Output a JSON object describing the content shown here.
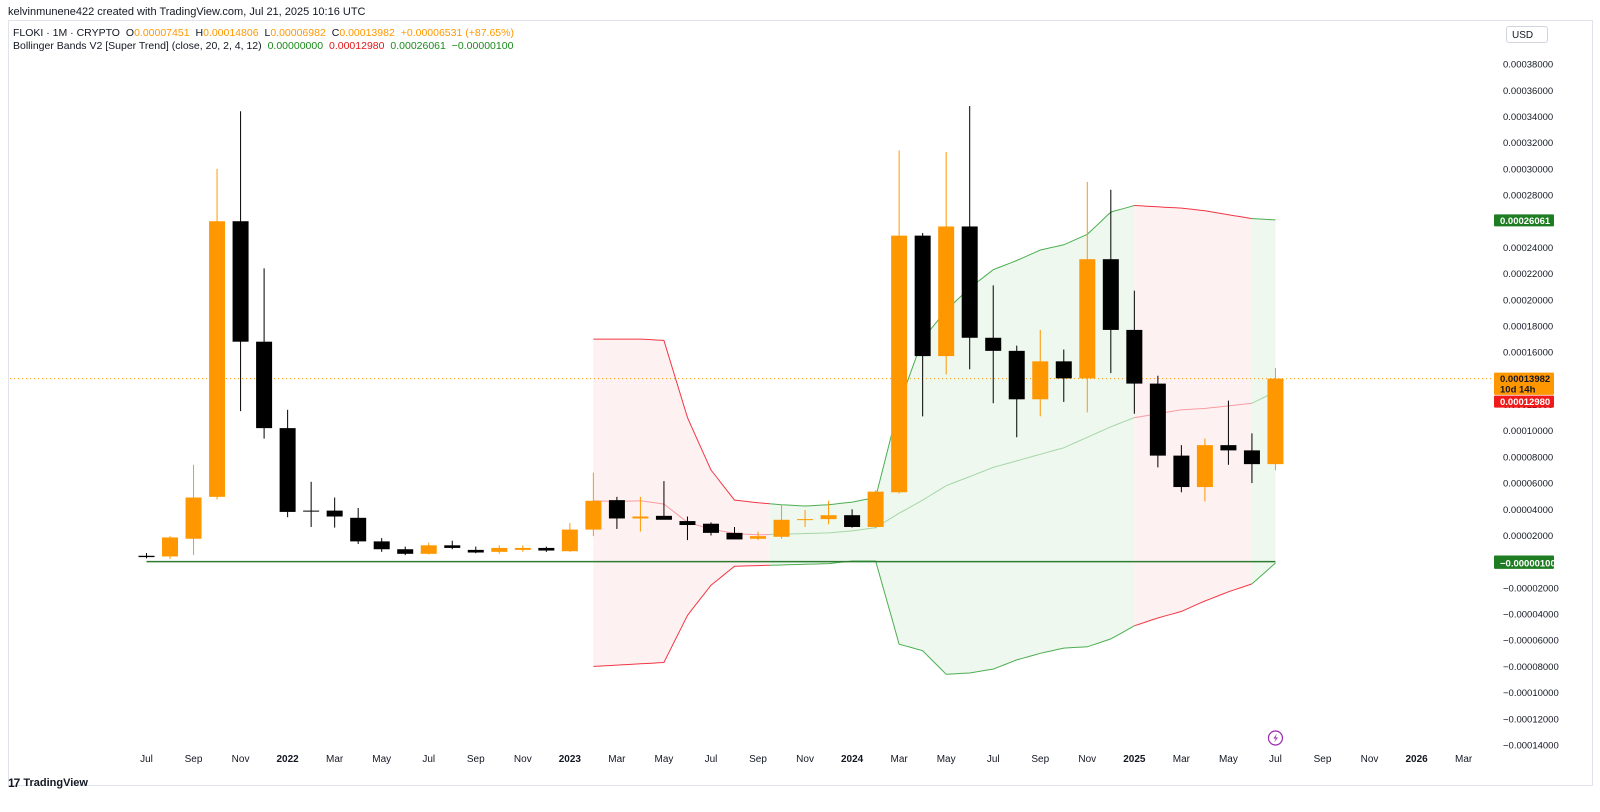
{
  "caption": "kelvinmunene422 created with TradingView.com, Jul 21, 2025 10:16 UTC",
  "currency_button": "USD",
  "brand": "TradingView",
  "brand_mark": "17",
  "legend": {
    "symbol": "FLOKI · 1M · CRYPTO",
    "o_label": "O",
    "o_value": "0.00007451",
    "h_label": "H",
    "h_value": "0.00014806",
    "l_label": "L",
    "l_value": "0.00006982",
    "c_label": "C",
    "c_value": "0.00013982",
    "change": "+0.00006531 (+87.65%)",
    "indicator": "Bollinger Bands V2 [Super Trend] (close, 20, 2, 4, 12)",
    "ind_v1": "0.00000000",
    "ind_v2": "0.00012980",
    "ind_v3": "0.00026061",
    "ind_v4": "−0.00000100"
  },
  "colors": {
    "up": "#ff9800",
    "down": "#000000",
    "green_line": "#4caf50",
    "red_line": "#f23645",
    "green_fill": "#e8f5e9",
    "red_fill": "#fdecec",
    "zero_line": "#2e7d32"
  },
  "price_tags": [
    {
      "label": "0.00026061",
      "value": 0.00026061,
      "bg": "#1e7d22",
      "color": "#ffffff"
    },
    {
      "label": "0.00013982",
      "value": 0.00013982,
      "bg": "#ff9800",
      "color": "#131722"
    },
    {
      "label": "10d 14h",
      "value": 0.000132,
      "bg": "#ff9800",
      "color": "#131722"
    },
    {
      "label": "0.00012980",
      "value": 0.0001222,
      "bg": "#f01a1a",
      "color": "#ffffff"
    },
    {
      "label": "0.00000000",
      "value": 1e-07,
      "bg": "#1e7d22",
      "color": "#ffffff"
    },
    {
      "label": "−0.00000100",
      "value": -9e-07,
      "bg": "#1e7d22",
      "color": "#ffffff"
    }
  ],
  "chart_data": {
    "type": "candlestick",
    "title": "",
    "y_range": [
      -0.00014,
      0.00039
    ],
    "y_ticks": [
      "0.00038000",
      "0.00036000",
      "0.00034000",
      "0.00032000",
      "0.00030000",
      "0.00028000",
      "0.00026000",
      "0.00024000",
      "0.00022000",
      "0.00020000",
      "0.00018000",
      "0.00016000",
      "0.00014000",
      "0.00012000",
      "0.00010000",
      "0.00008000",
      "0.00006000",
      "0.00004000",
      "0.00002000",
      "0.00000000",
      "−0.00002000",
      "−0.00004000",
      "−0.00006000",
      "−0.00008000",
      "−0.00010000",
      "−0.00012000",
      "−0.00014000"
    ],
    "y_tick_values": [
      0.00038,
      0.00036,
      0.00034,
      0.00032,
      0.0003,
      0.00028,
      0.00026,
      0.00024,
      0.00022,
      0.0002,
      0.00018,
      0.00016,
      0.00014,
      0.00012,
      0.0001,
      8e-05,
      6e-05,
      4e-05,
      2e-05,
      0,
      -2e-05,
      -4e-05,
      -6e-05,
      -8e-05,
      -0.0001,
      -0.00012,
      -0.00014
    ],
    "x_labels": [
      "Jul",
      "Sep",
      "Nov",
      "2022",
      "Mar",
      "May",
      "Jul",
      "Sep",
      "Nov",
      "2023",
      "Mar",
      "May",
      "Jul",
      "Sep",
      "Nov",
      "2024",
      "Mar",
      "May",
      "Jul",
      "Sep",
      "Nov",
      "2025",
      "Mar",
      "May",
      "Jul",
      "Sep",
      "Nov",
      "2026",
      "Mar"
    ],
    "x_label_months": [
      0,
      2,
      4,
      6,
      8,
      10,
      12,
      14,
      16,
      18,
      20,
      22,
      24,
      26,
      28,
      30,
      32,
      34,
      36,
      38,
      40,
      42,
      44,
      46,
      48,
      50,
      52,
      54,
      56
    ],
    "bold_labels": [
      "2022",
      "2023",
      "2024",
      "2025",
      "2026"
    ],
    "candles": [
      {
        "m": 0,
        "o": 4.5e-06,
        "h": 6.5e-06,
        "l": 2.5e-06,
        "c": 3.5e-06
      },
      {
        "m": 1,
        "o": 4e-06,
        "h": 1.95e-05,
        "l": 2e-06,
        "c": 1.85e-05
      },
      {
        "m": 2,
        "o": 1.75e-05,
        "h": 7.4e-05,
        "l": 5e-06,
        "c": 4.9e-05
      },
      {
        "m": 3,
        "o": 4.95e-05,
        "h": 0.0003,
        "l": 4.75e-05,
        "c": 0.00026
      },
      {
        "m": 4,
        "o": 0.00026,
        "h": 0.000344,
        "l": 0.000115,
        "c": 0.000168
      },
      {
        "m": 5,
        "o": 0.000168,
        "h": 0.000224,
        "l": 9.4e-05,
        "c": 0.000102
      },
      {
        "m": 6,
        "o": 0.000102,
        "h": 0.000116,
        "l": 3.4e-05,
        "c": 3.8e-05
      },
      {
        "m": 7,
        "o": 3.9e-05,
        "h": 6.1e-05,
        "l": 2.65e-05,
        "c": 3.85e-05
      },
      {
        "m": 8,
        "o": 3.9e-05,
        "h": 4.9e-05,
        "l": 2.6e-05,
        "c": 3.45e-05
      },
      {
        "m": 9,
        "o": 3.35e-05,
        "h": 4.1e-05,
        "l": 1.35e-05,
        "c": 1.55e-05
      },
      {
        "m": 10,
        "o": 1.55e-05,
        "h": 1.8e-05,
        "l": 7.5e-06,
        "c": 9.5e-06
      },
      {
        "m": 11,
        "o": 9.5e-06,
        "h": 1.15e-05,
        "l": 5e-06,
        "c": 6e-06
      },
      {
        "m": 12,
        "o": 6e-06,
        "h": 1.45e-05,
        "l": 5.5e-06,
        "c": 1.25e-05
      },
      {
        "m": 13,
        "o": 1.25e-05,
        "h": 1.6e-05,
        "l": 9.5e-06,
        "c": 1.05e-05
      },
      {
        "m": 14,
        "o": 9e-06,
        "h": 1.15e-05,
        "l": 6.5e-06,
        "c": 7e-06
      },
      {
        "m": 15,
        "o": 7.5e-06,
        "h": 1.25e-05,
        "l": 6e-06,
        "c": 1.05e-05
      },
      {
        "m": 16,
        "o": 9e-06,
        "h": 1.25e-05,
        "l": 7.5e-06,
        "c": 1.05e-05
      },
      {
        "m": 17,
        "o": 1.05e-05,
        "h": 1.15e-05,
        "l": 7.5e-06,
        "c": 8.5e-06
      },
      {
        "m": 18,
        "o": 8e-06,
        "h": 2.95e-05,
        "l": 7.5e-06,
        "c": 2.45e-05
      },
      {
        "m": 19,
        "o": 2.45e-05,
        "h": 6.8e-05,
        "l": 1.95e-05,
        "c": 4.65e-05
      },
      {
        "m": 20,
        "o": 4.7e-05,
        "h": 4.95e-05,
        "l": 2.5e-05,
        "c": 3.3e-05
      },
      {
        "m": 21,
        "o": 3.3e-05,
        "h": 4.95e-05,
        "l": 2.3e-05,
        "c": 3.45e-05
      },
      {
        "m": 22,
        "o": 3.5e-05,
        "h": 6.15e-05,
        "l": 3.25e-05,
        "c": 3.2e-05
      },
      {
        "m": 23,
        "o": 3.1e-05,
        "h": 3.45e-05,
        "l": 1.65e-05,
        "c": 2.8e-05
      },
      {
        "m": 24,
        "o": 2.9e-05,
        "h": 3e-05,
        "l": 2e-05,
        "c": 2.2e-05
      },
      {
        "m": 25,
        "o": 2.2e-05,
        "h": 2.65e-05,
        "l": 1.75e-05,
        "c": 1.7e-05
      },
      {
        "m": 26,
        "o": 1.75e-05,
        "h": 2.3e-05,
        "l": 1.65e-05,
        "c": 1.95e-05
      },
      {
        "m": 27,
        "o": 1.9e-05,
        "h": 4.35e-05,
        "l": 1.75e-05,
        "c": 3.2e-05
      },
      {
        "m": 28,
        "o": 3.25e-05,
        "h": 3.95e-05,
        "l": 2.65e-05,
        "c": 3.25e-05
      },
      {
        "m": 29,
        "o": 3.25e-05,
        "h": 4.65e-05,
        "l": 2.85e-05,
        "c": 3.55e-05
      },
      {
        "m": 30,
        "o": 3.55e-05,
        "h": 4e-05,
        "l": 2.6e-05,
        "c": 2.65e-05
      },
      {
        "m": 31,
        "o": 2.65e-05,
        "h": 5.45e-05,
        "l": 2.55e-05,
        "c": 5.35e-05
      },
      {
        "m": 32,
        "o": 5.3e-05,
        "h": 0.000314,
        "l": 5.2e-05,
        "c": 0.000249
      },
      {
        "m": 33,
        "o": 0.000249,
        "h": 0.000251,
        "l": 0.000111,
        "c": 0.000157
      },
      {
        "m": 34,
        "o": 0.000157,
        "h": 0.000313,
        "l": 0.000143,
        "c": 0.000256
      },
      {
        "m": 35,
        "o": 0.000256,
        "h": 0.000348,
        "l": 0.000147,
        "c": 0.000171
      },
      {
        "m": 36,
        "o": 0.000171,
        "h": 0.000211,
        "l": 0.000121,
        "c": 0.000161
      },
      {
        "m": 37,
        "o": 0.000161,
        "h": 0.000165,
        "l": 9.5e-05,
        "c": 0.000124
      },
      {
        "m": 38,
        "o": 0.000124,
        "h": 0.000177,
        "l": 0.000111,
        "c": 0.000153
      },
      {
        "m": 39,
        "o": 0.000153,
        "h": 0.000162,
        "l": 0.000122,
        "c": 0.00014
      },
      {
        "m": 40,
        "o": 0.00014,
        "h": 0.00029,
        "l": 0.000114,
        "c": 0.000231
      },
      {
        "m": 41,
        "o": 0.000231,
        "h": 0.000284,
        "l": 0.000144,
        "c": 0.000177
      },
      {
        "m": 42,
        "o": 0.000177,
        "h": 0.000207,
        "l": 0.000113,
        "c": 0.000136
      },
      {
        "m": 43,
        "o": 0.000136,
        "h": 0.000142,
        "l": 7.2e-05,
        "c": 8.1e-05
      },
      {
        "m": 44,
        "o": 8.1e-05,
        "h": 8.9e-05,
        "l": 5.3e-05,
        "c": 5.7e-05
      },
      {
        "m": 45,
        "o": 5.7e-05,
        "h": 9.4e-05,
        "l": 4.6e-05,
        "c": 8.9e-05
      },
      {
        "m": 46,
        "o": 8.9e-05,
        "h": 0.000123,
        "l": 7.4e-05,
        "c": 8.5e-05
      },
      {
        "m": 47,
        "o": 8.5e-05,
        "h": 9.8e-05,
        "l": 6e-05,
        "c": 7.45e-05
      },
      {
        "m": 48,
        "o": 7.45e-05,
        "h": 0.000148,
        "l": 6.98e-05,
        "c": 0.0001398
      }
    ],
    "upper_band": [
      {
        "m": 19,
        "v": 0.00017
      },
      {
        "m": 21,
        "v": 0.00017
      },
      {
        "m": 22,
        "v": 0.000169
      },
      {
        "m": 23,
        "v": 0.00011
      },
      {
        "m": 24,
        "v": 7e-05
      },
      {
        "m": 25,
        "v": 4.7e-05
      },
      {
        "m": 26,
        "v": 4.5e-05
      },
      {
        "m": 27,
        "v": 4.35e-05
      },
      {
        "m": 28,
        "v": 4.25e-05
      },
      {
        "m": 29,
        "v": 4.35e-05
      },
      {
        "m": 30,
        "v": 4.55e-05
      },
      {
        "m": 31,
        "v": 4.9e-05
      },
      {
        "m": 32,
        "v": 0.00012
      },
      {
        "m": 33,
        "v": 0.00017
      },
      {
        "m": 34,
        "v": 0.000192
      },
      {
        "m": 35,
        "v": 0.000209
      },
      {
        "m": 36,
        "v": 0.000223
      },
      {
        "m": 37,
        "v": 0.00023
      },
      {
        "m": 38,
        "v": 0.000238
      },
      {
        "m": 39,
        "v": 0.000242
      },
      {
        "m": 40,
        "v": 0.00025
      },
      {
        "m": 41,
        "v": 0.000267
      },
      {
        "m": 42,
        "v": 0.000272
      },
      {
        "m": 43,
        "v": 0.000271
      },
      {
        "m": 44,
        "v": 0.00027
      },
      {
        "m": 45,
        "v": 0.000268
      },
      {
        "m": 46,
        "v": 0.000265
      },
      {
        "m": 47,
        "v": 0.000262
      },
      {
        "m": 48,
        "v": 0.000261
      }
    ],
    "basis": [
      {
        "m": 19,
        "v": 4.65e-05
      },
      {
        "m": 20,
        "v": 4.6e-05
      },
      {
        "m": 21,
        "v": 4.65e-05
      },
      {
        "m": 22,
        "v": 4.4e-05
      },
      {
        "m": 23,
        "v": 3e-05
      },
      {
        "m": 24,
        "v": 2.5e-05
      },
      {
        "m": 25,
        "v": 2.15e-05
      },
      {
        "m": 26,
        "v": 2.05e-05
      },
      {
        "m": 27,
        "v": 2.1e-05
      },
      {
        "m": 28,
        "v": 2.15e-05
      },
      {
        "m": 29,
        "v": 2.2e-05
      },
      {
        "m": 30,
        "v": 2.35e-05
      },
      {
        "m": 31,
        "v": 2.6e-05
      },
      {
        "m": 32,
        "v": 3.7e-05
      },
      {
        "m": 33,
        "v": 4.7e-05
      },
      {
        "m": 34,
        "v": 5.8e-05
      },
      {
        "m": 35,
        "v": 6.5e-05
      },
      {
        "m": 36,
        "v": 7.2e-05
      },
      {
        "m": 37,
        "v": 7.7e-05
      },
      {
        "m": 38,
        "v": 8.2e-05
      },
      {
        "m": 39,
        "v": 8.7e-05
      },
      {
        "m": 40,
        "v": 9.5e-05
      },
      {
        "m": 41,
        "v": 0.000103
      },
      {
        "m": 42,
        "v": 0.00011
      },
      {
        "m": 43,
        "v": 0.000113
      },
      {
        "m": 44,
        "v": 0.000116
      },
      {
        "m": 45,
        "v": 0.000117
      },
      {
        "m": 46,
        "v": 0.000119
      },
      {
        "m": 47,
        "v": 0.000121
      },
      {
        "m": 48,
        "v": 0.0001298
      }
    ],
    "lower_band": [
      {
        "m": 19,
        "v": -8e-05
      },
      {
        "m": 21,
        "v": -7.8e-05
      },
      {
        "m": 22,
        "v": -7.7e-05
      },
      {
        "m": 23,
        "v": -4.1e-05
      },
      {
        "m": 24,
        "v": -1.8e-05
      },
      {
        "m": 25,
        "v": -3.5e-06
      },
      {
        "m": 26,
        "v": -3e-06
      },
      {
        "m": 27,
        "v": -2.5e-06
      },
      {
        "m": 28,
        "v": -2e-06
      },
      {
        "m": 29,
        "v": -1.5e-06
      },
      {
        "m": 30,
        "v": 5e-07
      },
      {
        "m": 31,
        "v": 5e-07
      },
      {
        "m": 32,
        "v": -6.3e-05
      },
      {
        "m": 33,
        "v": -6.8e-05
      },
      {
        "m": 34,
        "v": -8.6e-05
      },
      {
        "m": 35,
        "v": -8.5e-05
      },
      {
        "m": 36,
        "v": -8.2e-05
      },
      {
        "m": 37,
        "v": -7.5e-05
      },
      {
        "m": 38,
        "v": -7e-05
      },
      {
        "m": 39,
        "v": -6.6e-05
      },
      {
        "m": 40,
        "v": -6.5e-05
      },
      {
        "m": 41,
        "v": -5.9e-05
      },
      {
        "m": 42,
        "v": -4.9e-05
      },
      {
        "m": 43,
        "v": -4.3e-05
      },
      {
        "m": 44,
        "v": -3.8e-05
      },
      {
        "m": 45,
        "v": -3e-05
      },
      {
        "m": 46,
        "v": -2.3e-05
      },
      {
        "m": 47,
        "v": -1.7e-05
      },
      {
        "m": 48,
        "v": -1e-06
      }
    ],
    "zero_line_range": [
      0,
      48
    ],
    "fill_segments": [
      {
        "from": 19,
        "to": 26.5,
        "color": "red"
      },
      {
        "from": 26.5,
        "to": 42,
        "color": "green"
      },
      {
        "from": 42,
        "to": 47,
        "color": "red"
      },
      {
        "from": 47,
        "to": 48,
        "color": "green"
      }
    ],
    "current_price": 0.00013982,
    "event_marker_month": 48
  }
}
